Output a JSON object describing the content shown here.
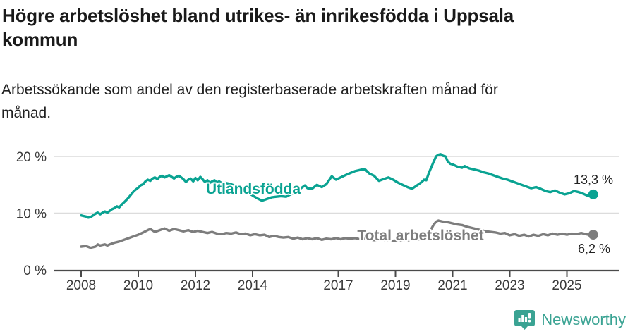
{
  "header": {
    "title_lines": [
      "Högre arbetslöshet bland utrikes- än inrikesfödda i Uppsala",
      "kommun"
    ],
    "subtitle_lines": [
      "Arbetssökande som andel av den registerbaserade arbetskraften månad för",
      "månad."
    ]
  },
  "footer": {
    "brand": "Newsworthy",
    "brand_color": "#3aa393",
    "logo_icon": "bar-chart-speech-bubble-icon"
  },
  "chart_data": {
    "type": "line",
    "unit": "%",
    "grid": "horizontal",
    "legend": "inline-labels",
    "x_axis": {
      "ticks": [
        2008,
        2010,
        2012,
        2014,
        2017,
        2019,
        2021,
        2023,
        2025
      ],
      "range": [
        2007.05,
        2026.8
      ]
    },
    "y_axis": {
      "ticks": [
        {
          "value": 0,
          "label": "0 %"
        },
        {
          "value": 10,
          "label": "10 %"
        },
        {
          "value": 20,
          "label": "20 %"
        }
      ],
      "range": [
        0,
        21
      ]
    },
    "series": [
      {
        "name": "Utlandsfödda",
        "color": "#0aa392",
        "end_label": "13,3 %",
        "end_value": 13.3,
        "points": [
          [
            2008.0,
            9.6
          ],
          [
            2008.08,
            9.5
          ],
          [
            2008.17,
            9.4
          ],
          [
            2008.25,
            9.2
          ],
          [
            2008.33,
            9.3
          ],
          [
            2008.42,
            9.6
          ],
          [
            2008.5,
            9.9
          ],
          [
            2008.58,
            10.1
          ],
          [
            2008.67,
            9.8
          ],
          [
            2008.75,
            10.1
          ],
          [
            2008.83,
            10.3
          ],
          [
            2008.92,
            10.1
          ],
          [
            2009.0,
            10.4
          ],
          [
            2009.08,
            10.7
          ],
          [
            2009.17,
            10.9
          ],
          [
            2009.25,
            11.2
          ],
          [
            2009.33,
            11.0
          ],
          [
            2009.42,
            11.5
          ],
          [
            2009.5,
            11.9
          ],
          [
            2009.58,
            12.3
          ],
          [
            2009.67,
            12.8
          ],
          [
            2009.75,
            13.3
          ],
          [
            2009.83,
            13.8
          ],
          [
            2009.92,
            14.2
          ],
          [
            2010.0,
            14.5
          ],
          [
            2010.08,
            14.9
          ],
          [
            2010.17,
            15.1
          ],
          [
            2010.25,
            15.6
          ],
          [
            2010.33,
            15.9
          ],
          [
            2010.42,
            15.7
          ],
          [
            2010.5,
            16.1
          ],
          [
            2010.58,
            16.3
          ],
          [
            2010.67,
            16.0
          ],
          [
            2010.75,
            16.4
          ],
          [
            2010.83,
            16.6
          ],
          [
            2010.92,
            16.3
          ],
          [
            2011.0,
            16.5
          ],
          [
            2011.08,
            16.7
          ],
          [
            2011.17,
            16.4
          ],
          [
            2011.25,
            16.1
          ],
          [
            2011.33,
            16.4
          ],
          [
            2011.42,
            16.6
          ],
          [
            2011.5,
            16.3
          ],
          [
            2011.58,
            16.0
          ],
          [
            2011.67,
            15.5
          ],
          [
            2011.75,
            15.9
          ],
          [
            2011.83,
            16.1
          ],
          [
            2011.92,
            15.6
          ],
          [
            2012.0,
            16.2
          ],
          [
            2012.08,
            15.8
          ],
          [
            2012.17,
            16.4
          ],
          [
            2012.25,
            16.0
          ],
          [
            2012.33,
            15.5
          ],
          [
            2012.42,
            15.8
          ],
          [
            2012.5,
            15.3
          ],
          [
            2012.58,
            15.6
          ],
          [
            2012.67,
            15.8
          ],
          [
            2012.75,
            15.4
          ],
          [
            2012.83,
            15.6
          ],
          [
            2012.92,
            15.3
          ],
          [
            2013.0,
            15.4
          ],
          [
            2013.25,
            15.1
          ],
          [
            2013.5,
            14.6
          ],
          [
            2013.75,
            13.9
          ],
          [
            2014.0,
            13.1
          ],
          [
            2014.17,
            12.6
          ],
          [
            2014.33,
            12.2
          ],
          [
            2014.5,
            12.5
          ],
          [
            2014.67,
            12.8
          ],
          [
            2014.83,
            12.9
          ],
          [
            2015.0,
            13.0
          ],
          [
            2015.17,
            12.9
          ],
          [
            2015.33,
            13.3
          ],
          [
            2015.5,
            13.7
          ],
          [
            2015.67,
            14.3
          ],
          [
            2015.83,
            14.9
          ],
          [
            2015.92,
            14.4
          ],
          [
            2016.08,
            14.3
          ],
          [
            2016.25,
            15.0
          ],
          [
            2016.42,
            14.6
          ],
          [
            2016.58,
            15.1
          ],
          [
            2016.77,
            16.5
          ],
          [
            2016.92,
            15.9
          ],
          [
            2017.08,
            16.3
          ],
          [
            2017.33,
            16.9
          ],
          [
            2017.58,
            17.4
          ],
          [
            2017.92,
            17.8
          ],
          [
            2018.08,
            17.0
          ],
          [
            2018.25,
            16.6
          ],
          [
            2018.42,
            15.7
          ],
          [
            2018.58,
            16.0
          ],
          [
            2018.75,
            16.3
          ],
          [
            2018.92,
            15.9
          ],
          [
            2019.08,
            15.4
          ],
          [
            2019.25,
            15.0
          ],
          [
            2019.42,
            14.6
          ],
          [
            2019.58,
            14.3
          ],
          [
            2019.75,
            14.9
          ],
          [
            2019.92,
            15.5
          ],
          [
            2020.0,
            15.9
          ],
          [
            2020.08,
            15.8
          ],
          [
            2020.17,
            17.1
          ],
          [
            2020.33,
            19.0
          ],
          [
            2020.42,
            20.0
          ],
          [
            2020.5,
            20.3
          ],
          [
            2020.58,
            20.4
          ],
          [
            2020.67,
            20.1
          ],
          [
            2020.75,
            20.0
          ],
          [
            2020.83,
            19.1
          ],
          [
            2020.92,
            18.7
          ],
          [
            2021.0,
            18.6
          ],
          [
            2021.17,
            18.2
          ],
          [
            2021.33,
            18.0
          ],
          [
            2021.42,
            18.3
          ],
          [
            2021.58,
            17.9
          ],
          [
            2021.75,
            17.7
          ],
          [
            2021.92,
            17.5
          ],
          [
            2022.08,
            17.2
          ],
          [
            2022.25,
            17.0
          ],
          [
            2022.42,
            16.7
          ],
          [
            2022.58,
            16.4
          ],
          [
            2022.75,
            16.1
          ],
          [
            2022.92,
            15.9
          ],
          [
            2023.08,
            15.6
          ],
          [
            2023.25,
            15.3
          ],
          [
            2023.42,
            15.0
          ],
          [
            2023.58,
            14.7
          ],
          [
            2023.75,
            14.4
          ],
          [
            2023.92,
            14.6
          ],
          [
            2024.08,
            14.3
          ],
          [
            2024.25,
            13.9
          ],
          [
            2024.42,
            13.7
          ],
          [
            2024.58,
            14.0
          ],
          [
            2024.75,
            13.6
          ],
          [
            2024.92,
            13.3
          ],
          [
            2025.08,
            13.5
          ],
          [
            2025.25,
            13.9
          ],
          [
            2025.42,
            13.7
          ],
          [
            2025.58,
            13.4
          ],
          [
            2025.75,
            13.0
          ],
          [
            2025.92,
            13.3
          ]
        ]
      },
      {
        "name": "Total arbetslöshet",
        "color": "#7d7d7d",
        "end_label": "6,2 %",
        "end_value": 6.2,
        "points": [
          [
            2008.0,
            4.1
          ],
          [
            2008.17,
            4.2
          ],
          [
            2008.33,
            3.9
          ],
          [
            2008.5,
            4.1
          ],
          [
            2008.58,
            4.5
          ],
          [
            2008.67,
            4.3
          ],
          [
            2008.83,
            4.5
          ],
          [
            2008.92,
            4.3
          ],
          [
            2009.0,
            4.5
          ],
          [
            2009.17,
            4.8
          ],
          [
            2009.33,
            5.0
          ],
          [
            2009.5,
            5.3
          ],
          [
            2009.67,
            5.6
          ],
          [
            2009.83,
            5.9
          ],
          [
            2010.0,
            6.2
          ],
          [
            2010.17,
            6.6
          ],
          [
            2010.33,
            7.0
          ],
          [
            2010.42,
            7.2
          ],
          [
            2010.58,
            6.7
          ],
          [
            2010.75,
            7.0
          ],
          [
            2010.92,
            7.3
          ],
          [
            2011.08,
            6.9
          ],
          [
            2011.25,
            7.2
          ],
          [
            2011.42,
            7.0
          ],
          [
            2011.58,
            6.8
          ],
          [
            2011.75,
            7.0
          ],
          [
            2011.92,
            6.7
          ],
          [
            2012.08,
            6.9
          ],
          [
            2012.25,
            6.7
          ],
          [
            2012.42,
            6.5
          ],
          [
            2012.58,
            6.7
          ],
          [
            2012.75,
            6.4
          ],
          [
            2012.92,
            6.3
          ],
          [
            2013.08,
            6.5
          ],
          [
            2013.25,
            6.4
          ],
          [
            2013.42,
            6.6
          ],
          [
            2013.58,
            6.3
          ],
          [
            2013.75,
            6.4
          ],
          [
            2013.92,
            6.1
          ],
          [
            2014.08,
            6.3
          ],
          [
            2014.25,
            6.1
          ],
          [
            2014.42,
            6.2
          ],
          [
            2014.58,
            5.8
          ],
          [
            2014.75,
            6.0
          ],
          [
            2014.92,
            5.8
          ],
          [
            2015.08,
            5.7
          ],
          [
            2015.25,
            5.8
          ],
          [
            2015.42,
            5.5
          ],
          [
            2015.58,
            5.7
          ],
          [
            2015.75,
            5.4
          ],
          [
            2015.92,
            5.6
          ],
          [
            2016.08,
            5.4
          ],
          [
            2016.25,
            5.6
          ],
          [
            2016.42,
            5.3
          ],
          [
            2016.58,
            5.5
          ],
          [
            2016.75,
            5.4
          ],
          [
            2016.92,
            5.6
          ],
          [
            2017.08,
            5.4
          ],
          [
            2017.25,
            5.6
          ],
          [
            2017.42,
            5.5
          ],
          [
            2017.58,
            5.6
          ],
          [
            2017.75,
            5.4
          ],
          [
            2017.92,
            5.5
          ],
          [
            2018.08,
            5.3
          ],
          [
            2018.33,
            5.2
          ],
          [
            2018.58,
            5.3
          ],
          [
            2018.83,
            5.1
          ],
          [
            2019.08,
            5.2
          ],
          [
            2019.33,
            5.1
          ],
          [
            2019.58,
            5.3
          ],
          [
            2019.83,
            5.4
          ],
          [
            2020.0,
            5.6
          ],
          [
            2020.17,
            6.5
          ],
          [
            2020.33,
            7.9
          ],
          [
            2020.42,
            8.5
          ],
          [
            2020.5,
            8.7
          ],
          [
            2020.67,
            8.5
          ],
          [
            2020.83,
            8.4
          ],
          [
            2021.0,
            8.2
          ],
          [
            2021.17,
            8.0
          ],
          [
            2021.33,
            7.9
          ],
          [
            2021.5,
            7.6
          ],
          [
            2021.67,
            7.4
          ],
          [
            2021.83,
            7.2
          ],
          [
            2022.0,
            7.0
          ],
          [
            2022.17,
            6.8
          ],
          [
            2022.33,
            6.7
          ],
          [
            2022.5,
            6.6
          ],
          [
            2022.67,
            6.4
          ],
          [
            2022.83,
            6.5
          ],
          [
            2023.0,
            6.1
          ],
          [
            2023.17,
            6.3
          ],
          [
            2023.33,
            6.0
          ],
          [
            2023.5,
            6.2
          ],
          [
            2023.67,
            5.9
          ],
          [
            2023.83,
            6.2
          ],
          [
            2024.0,
            6.0
          ],
          [
            2024.17,
            6.3
          ],
          [
            2024.33,
            6.1
          ],
          [
            2024.5,
            6.4
          ],
          [
            2024.67,
            6.2
          ],
          [
            2024.83,
            6.4
          ],
          [
            2025.0,
            6.2
          ],
          [
            2025.17,
            6.4
          ],
          [
            2025.33,
            6.3
          ],
          [
            2025.5,
            6.5
          ],
          [
            2025.67,
            6.3
          ],
          [
            2025.83,
            6.1
          ],
          [
            2025.92,
            6.2
          ]
        ]
      }
    ]
  }
}
